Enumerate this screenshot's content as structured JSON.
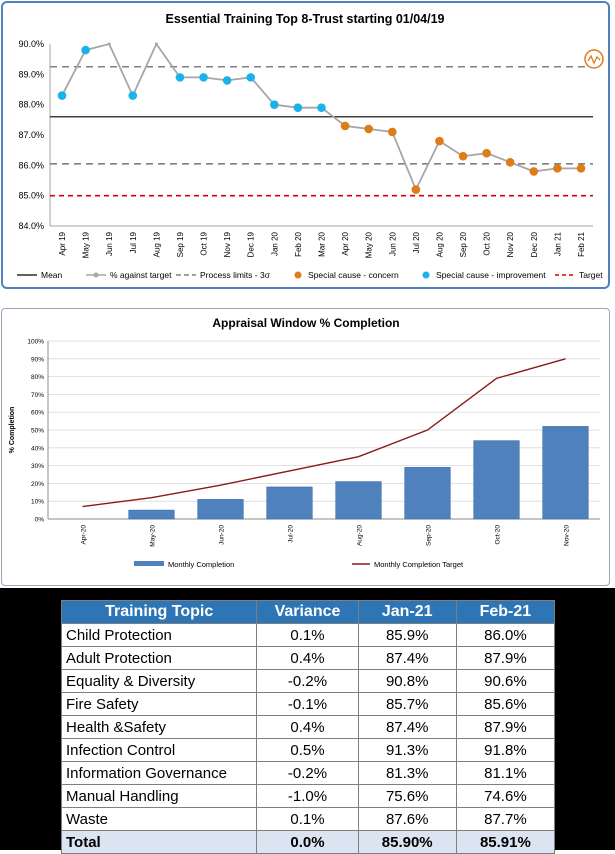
{
  "colors": {
    "accent": "#4f81bd",
    "bar": "#4f81bd",
    "target_line": "#8b1a1a",
    "concern": "#e07b1a",
    "improvement": "#1ab2e8",
    "process": "#808080",
    "table_header": "#2e75b6"
  },
  "chart_data": [
    {
      "type": "line",
      "title": "Essential Training Top 8-Trust starting 01/04/19",
      "x": [
        "Apr 19",
        "May 19",
        "Jun 19",
        "Jul 19",
        "Aug 19",
        "Sep 19",
        "Oct 19",
        "Nov 19",
        "Dec 19",
        "Jan 20",
        "Feb 20",
        "Mar 20",
        "Apr 20",
        "May 20",
        "Jun 20",
        "Jul 20",
        "Aug 20",
        "Sep 20",
        "Oct 20",
        "Nov 20",
        "Dec 20",
        "Jan 21",
        "Feb 21"
      ],
      "ylim": [
        84.0,
        90.0
      ],
      "yticks": [
        "84.0%",
        "85.0%",
        "86.0%",
        "87.0%",
        "88.0%",
        "89.0%",
        "90.0%"
      ],
      "series": [
        {
          "name": "% against target",
          "values": [
            88.3,
            89.8,
            90.0,
            88.3,
            90.0,
            88.9,
            88.9,
            88.8,
            88.9,
            88.0,
            87.9,
            87.9,
            87.3,
            87.2,
            87.1,
            85.2,
            86.8,
            86.3,
            86.4,
            86.1,
            85.8,
            85.9,
            85.9
          ]
        }
      ],
      "markers": [
        "improvement",
        "improvement",
        "none",
        "improvement",
        "none",
        "improvement",
        "improvement",
        "improvement",
        "improvement",
        "improvement",
        "improvement",
        "improvement",
        "concern",
        "concern",
        "concern",
        "concern",
        "concern",
        "concern",
        "concern",
        "concern",
        "concern",
        "concern",
        "concern"
      ],
      "mean": 87.6,
      "upper_process_limit": 89.25,
      "lower_process_limit": 86.05,
      "target": 85.0,
      "legend": [
        "Mean",
        "% against target",
        "Process limits - 3σ",
        "Special cause - concern",
        "Special cause  - improvement",
        "Target"
      ],
      "legend_position": "bottom"
    },
    {
      "type": "bar",
      "title": "Appraisal Window % Completion",
      "ylabel": "% Completion",
      "categories": [
        "Apr-20",
        "May-20",
        "Jun-20",
        "Jul-20",
        "Aug-20",
        "Sep-20",
        "Oct-20",
        "Nov-20"
      ],
      "ylim": [
        0,
        100
      ],
      "yticks": [
        "0%",
        "10%",
        "20%",
        "30%",
        "40%",
        "50%",
        "60%",
        "70%",
        "80%",
        "90%",
        "100%"
      ],
      "series": [
        {
          "name": "Monthly Completion",
          "values": [
            0,
            5,
            11,
            18,
            21,
            29,
            44,
            52
          ]
        },
        {
          "name": "Monthly Completion Target",
          "values": [
            7,
            12,
            19,
            27,
            35,
            50,
            79,
            90
          ]
        }
      ],
      "legend_position": "bottom"
    },
    {
      "type": "table",
      "columns": [
        "Training Topic",
        "Variance",
        "Jan-21",
        "Feb-21"
      ],
      "rows": [
        [
          "Child Protection",
          "0.1%",
          "85.9%",
          "86.0%"
        ],
        [
          "Adult Protection",
          "0.4%",
          "87.4%",
          "87.9%"
        ],
        [
          "Equality & Diversity",
          "-0.2%",
          "90.8%",
          "90.6%"
        ],
        [
          "Fire Safety",
          "-0.1%",
          "85.7%",
          "85.6%"
        ],
        [
          "Health &Safety",
          "0.4%",
          "87.4%",
          "87.9%"
        ],
        [
          "Infection Control",
          "0.5%",
          "91.3%",
          "91.8%"
        ],
        [
          "Information Governance",
          "-0.2%",
          "81.3%",
          "81.1%"
        ],
        [
          "Manual Handling",
          "-1.0%",
          "75.6%",
          "74.6%"
        ],
        [
          "Waste",
          "0.1%",
          "87.6%",
          "87.7%"
        ]
      ],
      "total": [
        "Total",
        "0.0%",
        "85.90%",
        "85.91%"
      ]
    }
  ]
}
